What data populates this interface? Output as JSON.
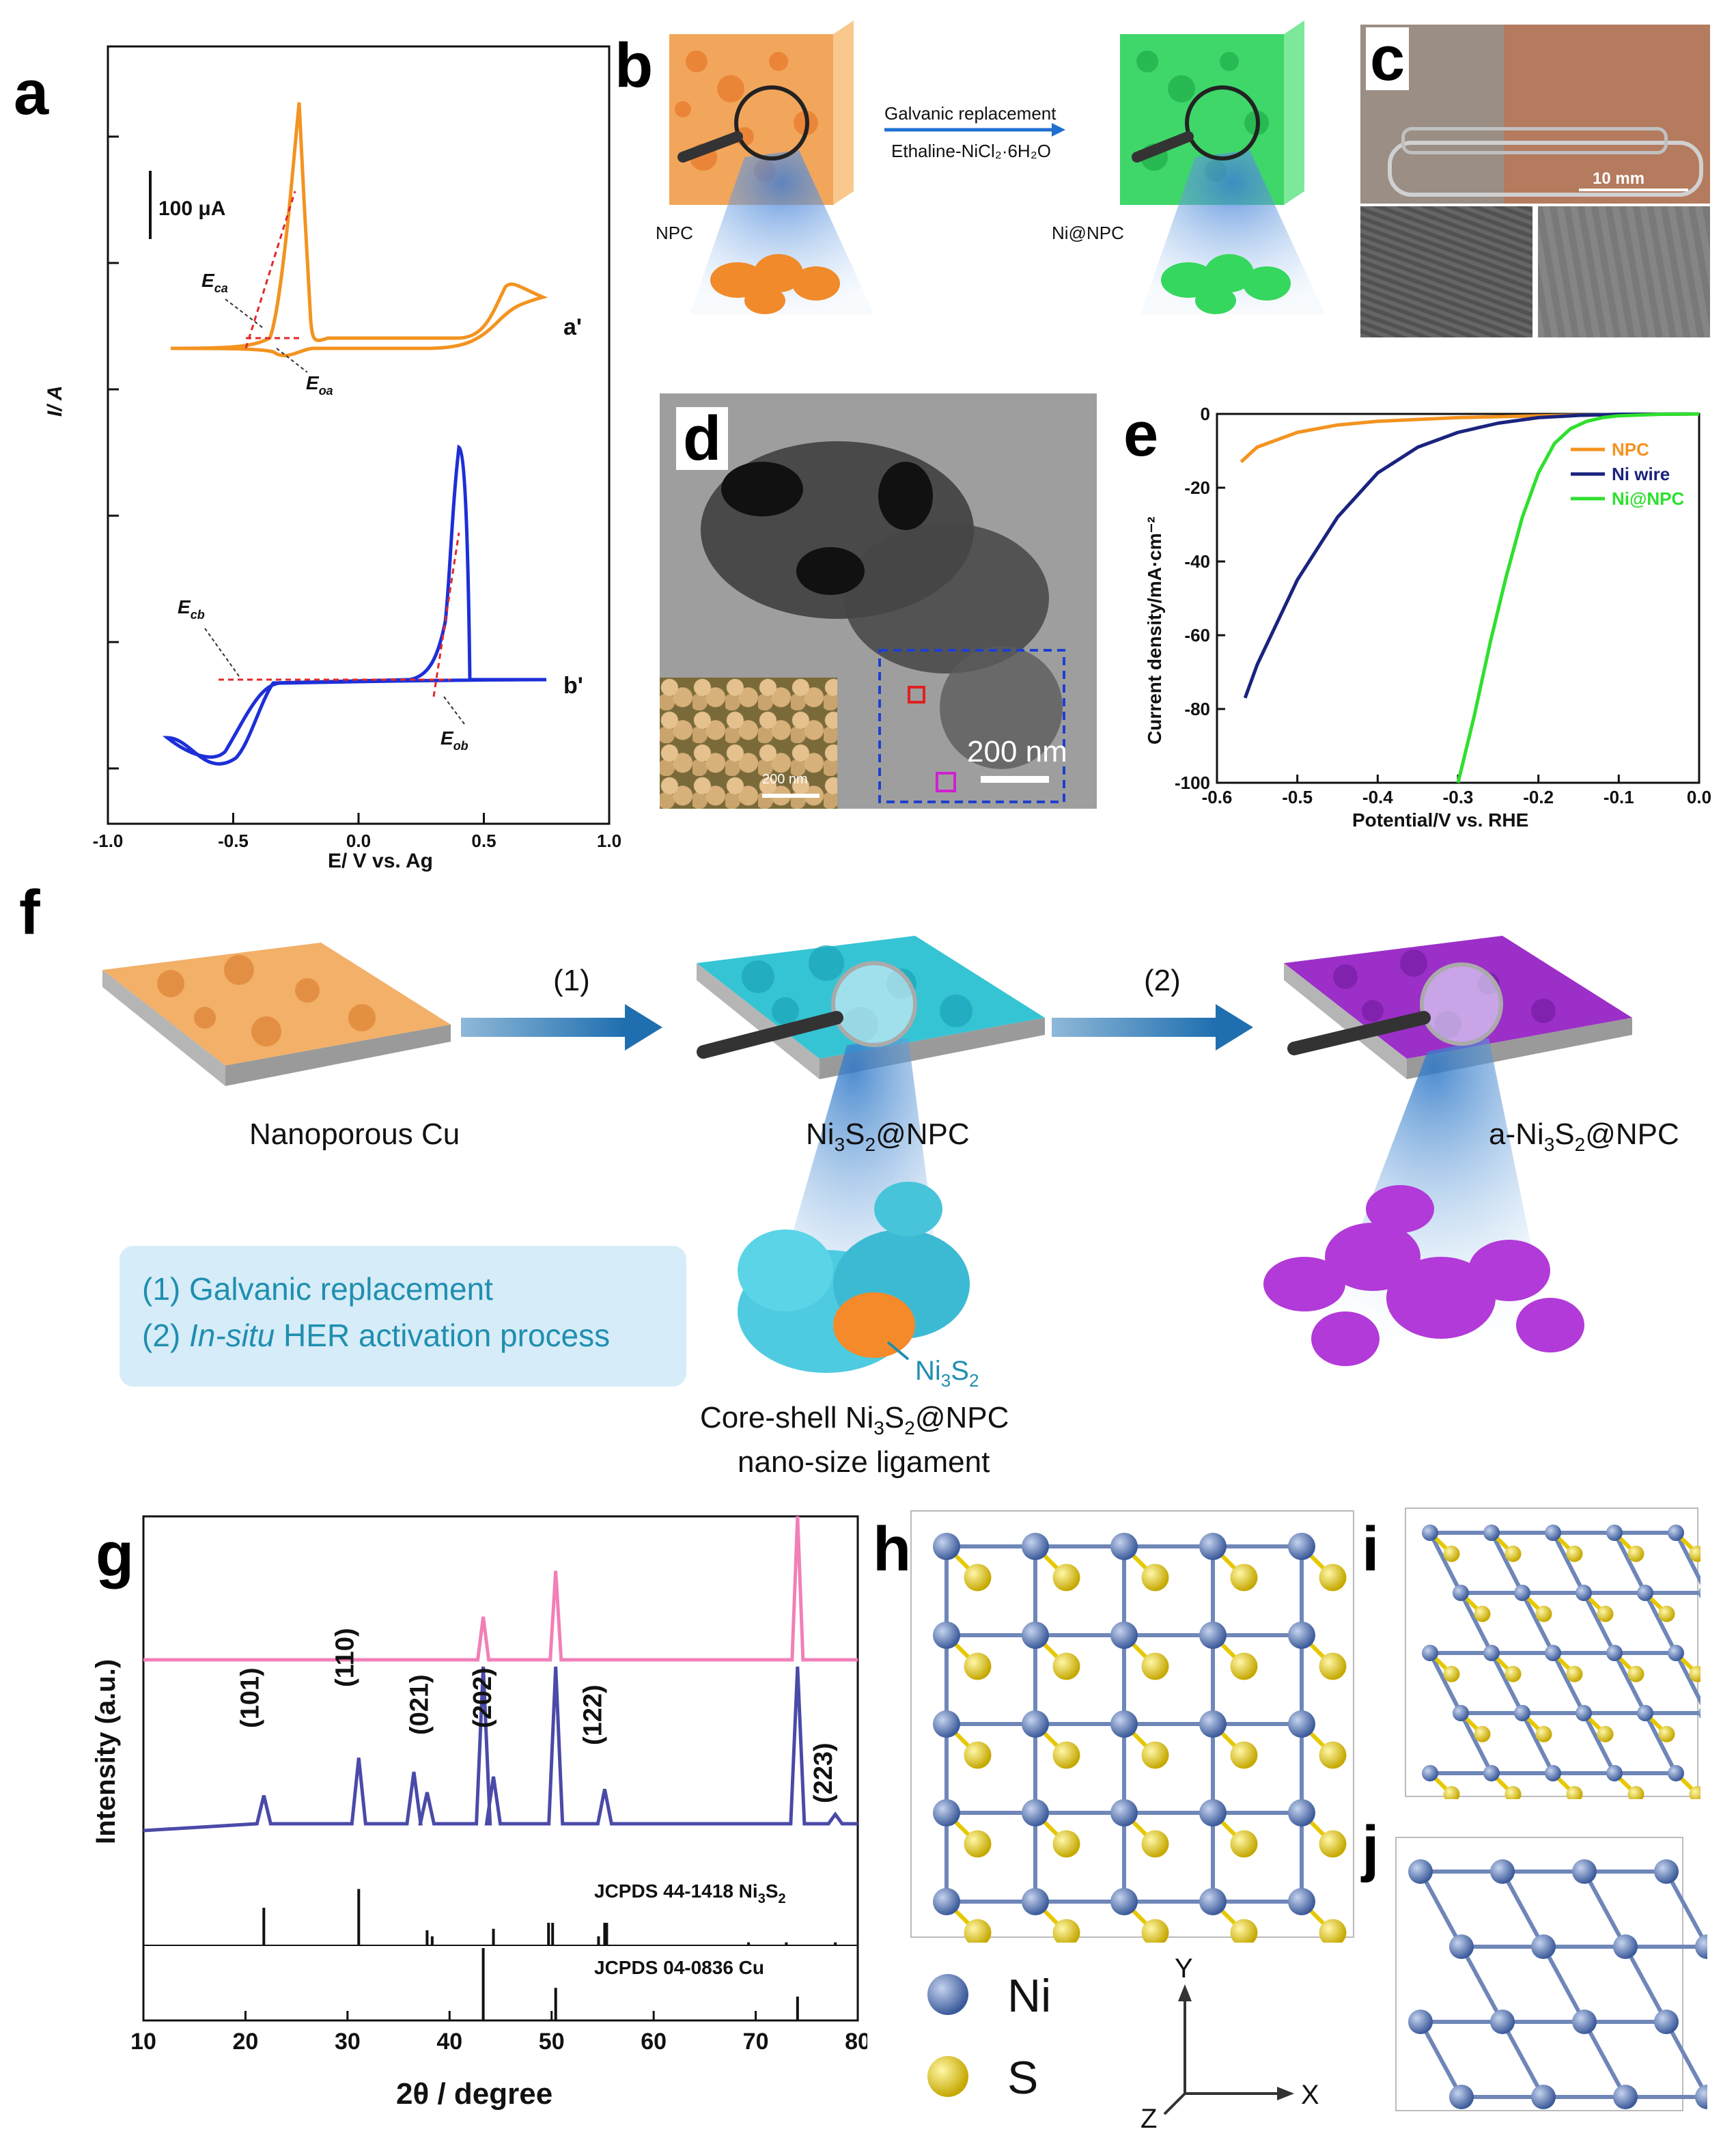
{
  "panels": {
    "a": {
      "label": "a",
      "scale_bar": "100 μA",
      "ylabel": "I/ A",
      "xlabel": "E/ V vs. Ag",
      "xticks": [
        "-1.0",
        "-0.5",
        "0.0",
        "0.5",
        "1.0"
      ],
      "curve_a_label": "a'",
      "curve_b_label": "b'",
      "E_ca": "E",
      "E_ca_sub": "ca",
      "E_oa": "E",
      "E_oa_sub": "oa",
      "E_cb": "E",
      "E_cb_sub": "cb",
      "E_ob": "E",
      "E_ob_sub": "ob",
      "colors": {
        "a": "#f39320",
        "b": "#1d2fd8",
        "tangent": "#e0282a"
      }
    },
    "b": {
      "label": "b",
      "arrow_top": "Galvanic replacement",
      "arrow_bottom": "Ethaline-NiCl₂·6H₂O",
      "left_name": "NPC",
      "right_name": "Ni@NPC"
    },
    "c": {
      "label": "c",
      "scale": "10 mm"
    },
    "d": {
      "label": "d",
      "scale_main": "200 nm",
      "scale_inset": "200 nm"
    },
    "e": {
      "label": "e",
      "ylabel": "Current density/mA·cm⁻²",
      "xlabel": "Potential/V vs. RHE",
      "xticks": [
        "-0.6",
        "-0.5",
        "-0.4",
        "-0.3",
        "-0.2",
        "-0.1",
        "0.0"
      ],
      "yticks": [
        "0",
        "-20",
        "-40",
        "-60",
        "-80",
        "-100"
      ],
      "legend": [
        {
          "name": "NPC",
          "color": "#f39320"
        },
        {
          "name": "Ni wire",
          "color": "#1a237e"
        },
        {
          "name": "Ni@NPC",
          "color": "#2ee02e"
        }
      ]
    },
    "f": {
      "label": "f",
      "step1": "(1)",
      "step2": "(2)",
      "name1": "Nanoporous Cu",
      "name2_pre": "Ni",
      "name2_sub1": "3",
      "name2_mid": "S",
      "name2_sub2": "2",
      "name2_post": "@NPC",
      "name3_pre": "a-Ni",
      "name3_sub1": "3",
      "name3_mid": "S",
      "name3_sub2": "2",
      "name3_post": "@NPC",
      "legend_1": "(1) Galvanic replacement",
      "legend_2_pre": "(2) ",
      "legend_2_italic": "In-situ",
      "legend_2_post": " HER activation process",
      "shell_pre": "Ni",
      "shell_sub1": "3",
      "shell_mid": "S",
      "shell_sub2": "2",
      "caption1_pre": "Core-shell Ni",
      "caption1_sub1": "3",
      "caption1_mid": "S",
      "caption1_sub2": "2",
      "caption1_post": "@NPC",
      "caption2": "nano-size ligament"
    },
    "g": {
      "label": "g",
      "ylabel": "Intensity (a.u.)",
      "xlabel": "2θ / degree",
      "xticks": [
        "10",
        "20",
        "30",
        "40",
        "50",
        "60",
        "70",
        "80"
      ],
      "peaks": [
        "(101)",
        "(110)",
        "(021)",
        "(202)",
        "(122)",
        "(223)"
      ],
      "ref1_pre": "JCPDS 44-1418 Ni",
      "ref1_sub1": "3",
      "ref1_mid": "S",
      "ref1_sub2": "2",
      "ref2": "JCPDS 04-0836 Cu"
    },
    "h": {
      "label": "h"
    },
    "i": {
      "label": "i"
    },
    "j": {
      "label": "j"
    },
    "atoms": {
      "ni": "Ni",
      "s": "S",
      "axis_y": "Y",
      "axis_x": "X",
      "axis_z": "Z"
    }
  },
  "chart_data": [
    {
      "type": "line",
      "panel": "a",
      "xlabel": "E/ V vs. Ag",
      "ylabel": "I/ A",
      "xlim": [
        -1.0,
        1.0
      ],
      "series": [
        {
          "name": "a'",
          "x": [
            -0.75,
            -0.5,
            -0.4,
            -0.3,
            -0.22,
            -0.2,
            0.0,
            0.3,
            0.5,
            0.6,
            0.75
          ],
          "y_rel": [
            0,
            0.02,
            0.1,
            0.6,
            1.0,
            0.0,
            0.02,
            0.05,
            0.2,
            0.33,
            0.12
          ]
        },
        {
          "name": "b'",
          "x": [
            -0.75,
            -0.62,
            -0.5,
            0.0,
            0.1,
            0.2,
            0.25,
            0.3,
            0.75
          ],
          "y_rel": [
            -0.22,
            -0.32,
            -0.05,
            0.0,
            0.05,
            0.3,
            1.0,
            0.0,
            0.0
          ]
        }
      ]
    },
    {
      "type": "line",
      "panel": "e",
      "xlabel": "Potential/V vs. RHE",
      "ylabel": "Current density/mA·cm⁻²",
      "xlim": [
        -0.6,
        0.0
      ],
      "ylim": [
        -100,
        0
      ],
      "series": [
        {
          "name": "NPC",
          "x": [
            -0.57,
            -0.55,
            -0.5,
            -0.45,
            -0.4,
            -0.3,
            -0.2,
            -0.1,
            0.0
          ],
          "y": [
            -13,
            -9,
            -5,
            -3,
            -2,
            -1,
            -0.5,
            -0.2,
            0
          ]
        },
        {
          "name": "Ni wire",
          "x": [
            -0.565,
            -0.55,
            -0.5,
            -0.45,
            -0.4,
            -0.35,
            -0.3,
            -0.25,
            -0.2,
            -0.15,
            -0.1,
            0.0
          ],
          "y": [
            -77,
            -68,
            -45,
            -28,
            -16,
            -9,
            -5,
            -2.5,
            -1,
            -0.4,
            -0.1,
            0
          ]
        },
        {
          "name": "Ni@NPC",
          "x": [
            -0.3,
            -0.28,
            -0.26,
            -0.24,
            -0.22,
            -0.2,
            -0.18,
            -0.16,
            -0.14,
            -0.12,
            -0.1,
            -0.05,
            0.0
          ],
          "y": [
            -100,
            -82,
            -62,
            -44,
            -28,
            -16,
            -8,
            -4,
            -2,
            -1,
            -0.5,
            -0.1,
            0
          ]
        }
      ]
    },
    {
      "type": "line",
      "panel": "g",
      "xlabel": "2θ / degree",
      "ylabel": "Intensity (a.u.)",
      "xlim": [
        10,
        80
      ],
      "series": [
        {
          "name": "Cu (pink)",
          "peaks_x": [
            43.3,
            50.4,
            74.1
          ],
          "peaks_rel": [
            0.3,
            0.62,
            1.0
          ]
        },
        {
          "name": "Ni3S2 (blue)",
          "peaks_x": [
            21.8,
            31.1,
            36.5,
            37.8,
            43.3,
            44.3,
            50.4,
            55.2,
            74.1,
            77.8
          ],
          "peaks_rel": [
            0.18,
            0.42,
            0.33,
            0.2,
            1.0,
            0.3,
            1.0,
            0.22,
            1.0,
            0.06
          ]
        },
        {
          "name": "JCPDS 44-1418 Ni3S2",
          "sticks_x": [
            21.8,
            31.1,
            37.8,
            38.3,
            44.3,
            49.7,
            50.1,
            54.6,
            55.2,
            55.4,
            69.3,
            73.0,
            77.8
          ],
          "sticks_rel": [
            0.5,
            0.75,
            0.2,
            0.12,
            0.22,
            0.3,
            0.3,
            0.12,
            0.3,
            0.3,
            0.04,
            0.04,
            0.04
          ]
        },
        {
          "name": "JCPDS 04-0836 Cu",
          "sticks_x": [
            43.3,
            50.4,
            74.1
          ],
          "sticks_rel": [
            1.0,
            0.45,
            0.33
          ]
        }
      ]
    }
  ]
}
